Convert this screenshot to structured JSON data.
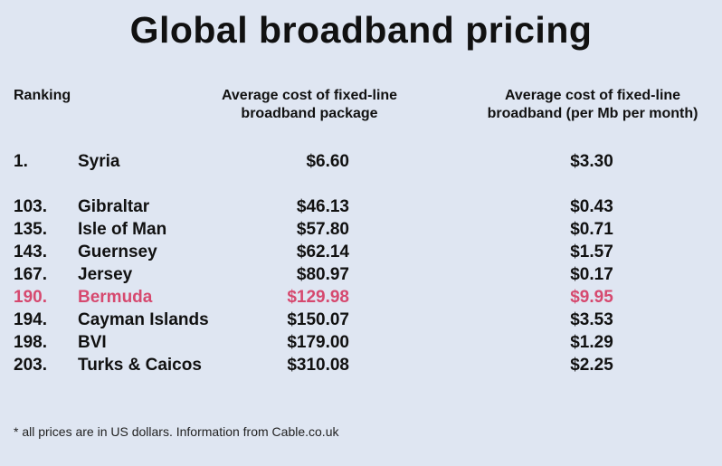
{
  "chart_data": {
    "type": "table",
    "title": "Global broadband pricing",
    "columns": [
      "Ranking",
      "Average cost of fixed-line broadband package",
      "Average cost of fixed-line broadband (per Mb per month)"
    ],
    "headers": {
      "rank": "Ranking",
      "package_line1": "Average cost of fixed-line",
      "package_line2": "broadband package",
      "per_mb_line1": "Average cost of fixed-line",
      "per_mb_line2": "broadband (per Mb per month)"
    },
    "rows": [
      {
        "rank": "1.",
        "country": "Syria",
        "package": "$6.60",
        "per_mb": "$3.30",
        "highlight": false
      },
      {
        "rank": "103.",
        "country": "Gibraltar",
        "package": "$46.13",
        "per_mb": "$0.43",
        "highlight": false
      },
      {
        "rank": "135.",
        "country": "Isle of Man",
        "package": "$57.80",
        "per_mb": "$0.71",
        "highlight": false
      },
      {
        "rank": "143.",
        "country": "Guernsey",
        "package": "$62.14",
        "per_mb": "$1.57",
        "highlight": false
      },
      {
        "rank": "167.",
        "country": "Jersey",
        "package": "$80.97",
        "per_mb": "$0.17",
        "highlight": false
      },
      {
        "rank": "190.",
        "country": "Bermuda",
        "package": "$129.98",
        "per_mb": "$9.95",
        "highlight": true
      },
      {
        "rank": "194.",
        "country": "Cayman Islands",
        "package": "$150.07",
        "per_mb": "$3.53",
        "highlight": false
      },
      {
        "rank": "198.",
        "country": "BVI",
        "package": "$179.00",
        "per_mb": "$1.29",
        "highlight": false
      },
      {
        "rank": "203.",
        "country": "Turks & Caicos",
        "package": "$310.08",
        "per_mb": "$2.25",
        "highlight": false
      }
    ],
    "highlight_color": "#d6496f",
    "footnote": "* all prices are in US dollars. Information from Cable.co.uk"
  }
}
